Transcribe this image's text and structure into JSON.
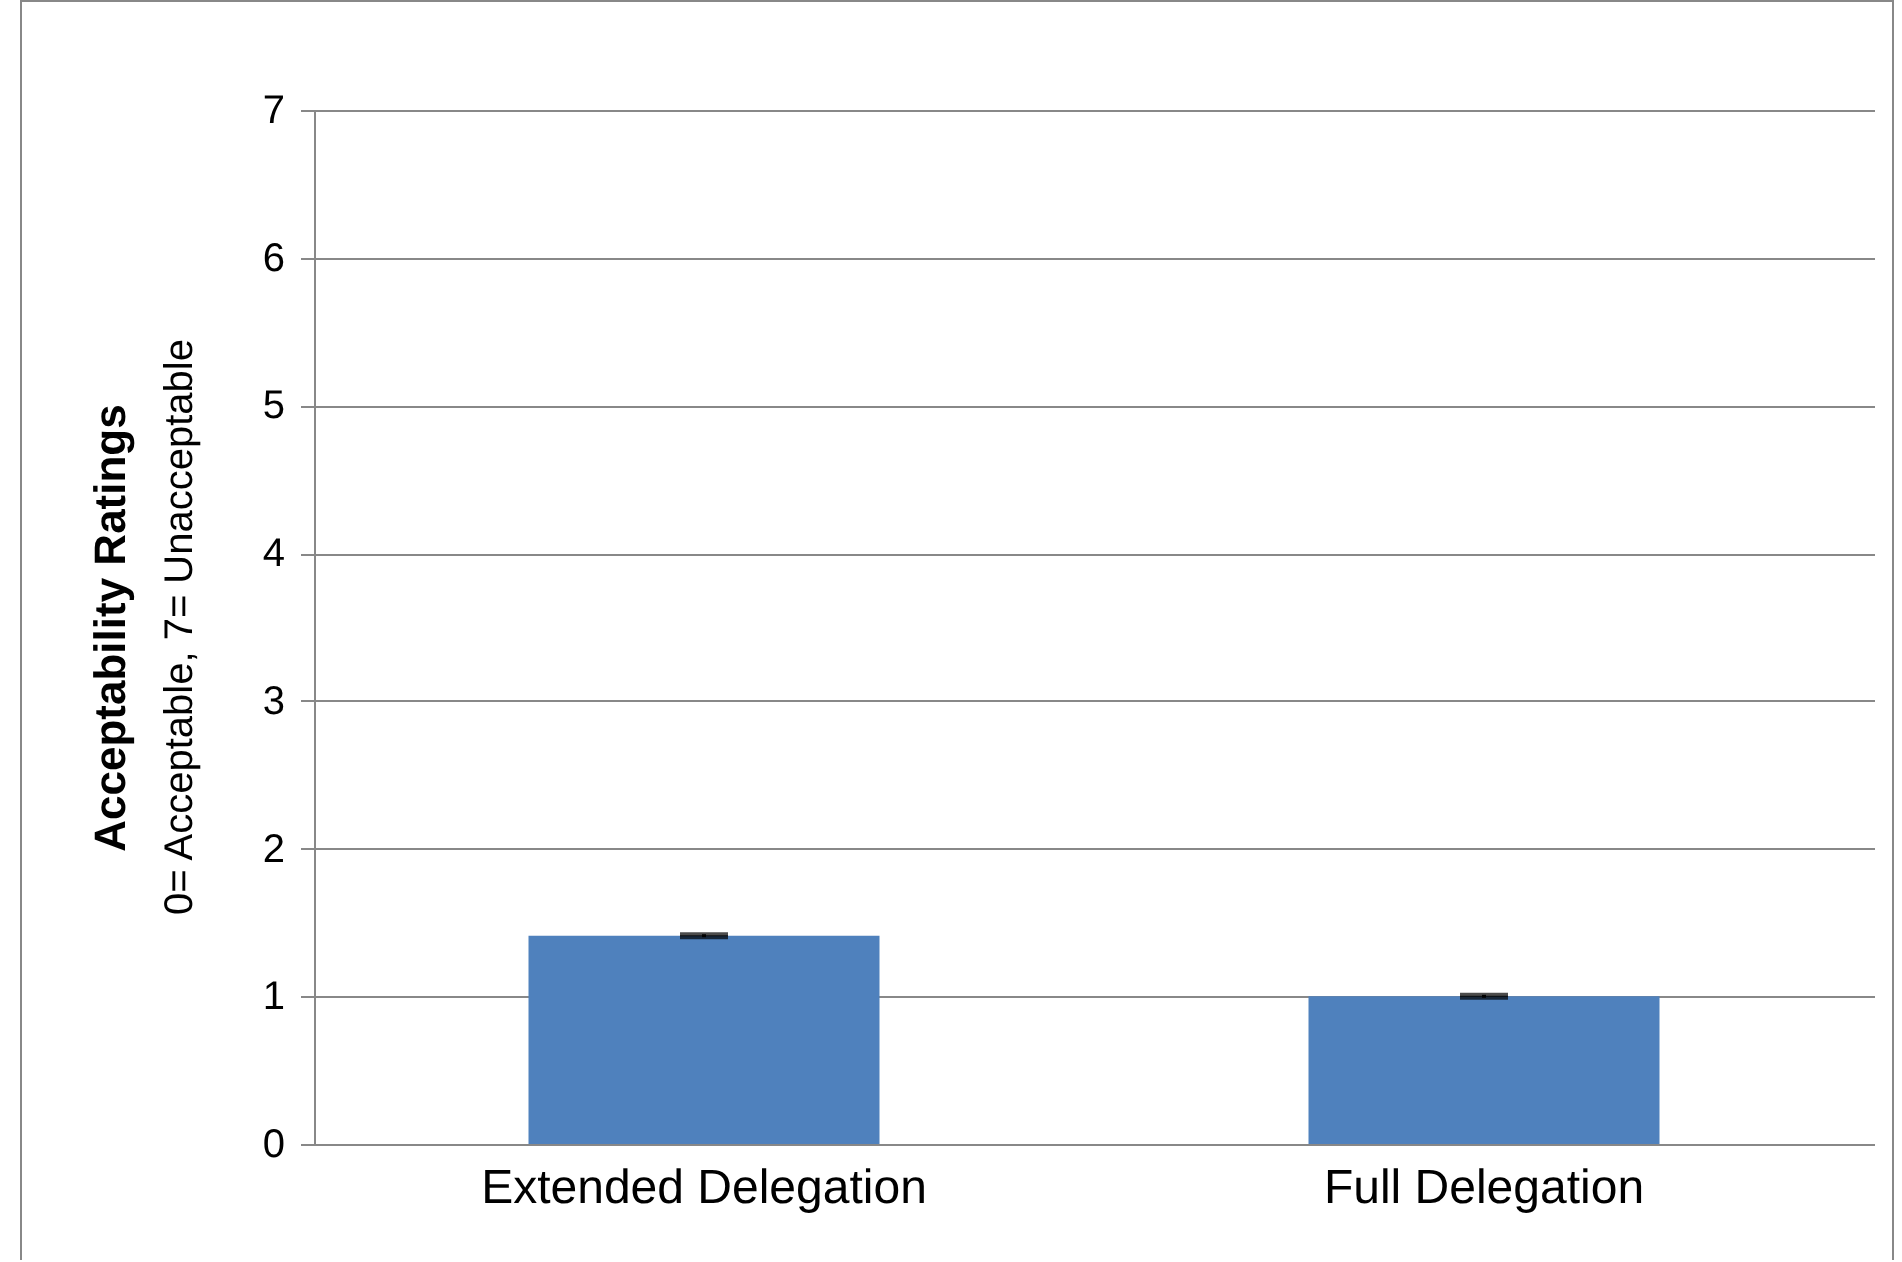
{
  "chart_data": {
    "type": "bar",
    "categories": [
      "Extended Delegation",
      "Full Delegation"
    ],
    "values": [
      1.41,
      1.0
    ],
    "errors": [
      0.01,
      0.01
    ],
    "color": "#4f81bd",
    "ylabel": "Acceptability Ratings",
    "annotations": [
      "0= Acceptable, 7= Unacceptable"
    ],
    "ylim": [
      0,
      7
    ],
    "yticks": [
      0,
      1,
      2,
      3,
      4,
      5,
      6,
      7
    ],
    "grid": "y"
  }
}
